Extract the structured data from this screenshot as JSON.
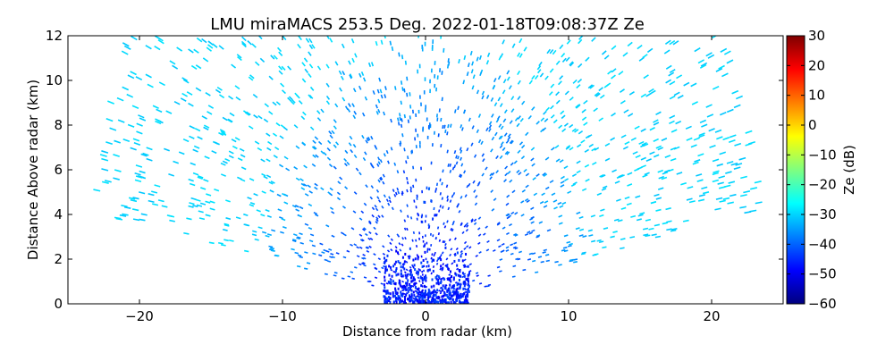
{
  "chart_data": {
    "type": "scatter",
    "title": "LMU miraMACS 253.5 Deg. 2022-01-18T09:08:37Z  Ze",
    "xlabel": "Distance from radar (km)",
    "ylabel": "Distance Above radar  (km)",
    "xlim": [
      -25,
      25
    ],
    "ylim": [
      0,
      12
    ],
    "x_ticks": [
      -20,
      -10,
      0,
      10,
      20
    ],
    "x_tick_labels": [
      "−20",
      "−10",
      "0",
      "10",
      "20"
    ],
    "y_ticks": [
      0,
      2,
      4,
      6,
      8,
      10,
      12
    ],
    "y_tick_labels": [
      "0",
      "2",
      "4",
      "6",
      "8",
      "10",
      "12"
    ],
    "grid": false,
    "scan": {
      "type": "RHI sector",
      "elevation_deg_min": 10,
      "elevation_deg_max": 170,
      "max_range_km": 24,
      "azimuth_deg": 253.5
    },
    "field_description": "Reflectivity Ze: about -50 to -40 dB near the radar (0–2 km), about -40 to -33 dB at mid ranges, about -30 dB at far ranges; sparse speckle echoes",
    "colorbar": {
      "label": "Ze (dB)",
      "min": -60,
      "max": 30,
      "ticks": [
        30,
        20,
        10,
        0,
        -10,
        -20,
        -30,
        -40,
        -50,
        -60
      ],
      "tick_labels": [
        "30",
        "20",
        "10",
        "0",
        "−10",
        "−20",
        "−30",
        "−40",
        "−50",
        "−60"
      ],
      "colormap": "jet",
      "colors": [
        "#00007f",
        "#0000ff",
        "#007fff",
        "#00ffff",
        "#7fff7f",
        "#ffff00",
        "#ff7f00",
        "#ff0000",
        "#7f0000"
      ]
    }
  }
}
